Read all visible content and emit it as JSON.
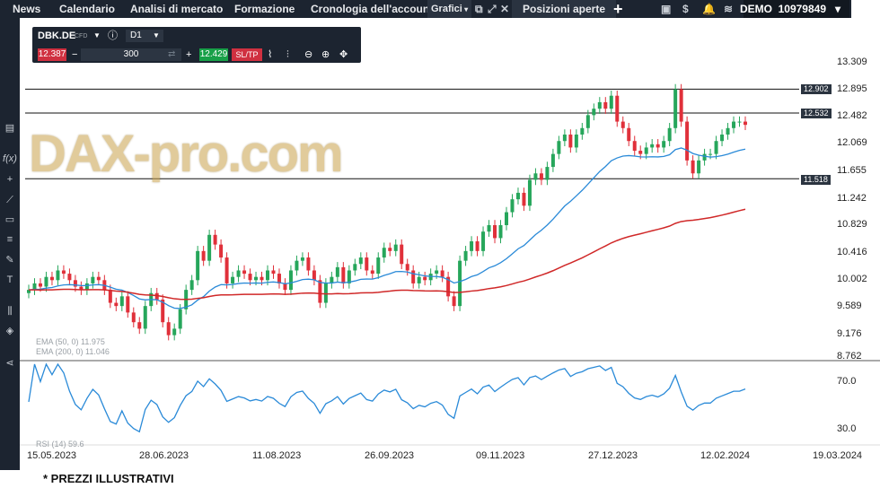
{
  "nav": {
    "news": "News",
    "calendar": "Calendario",
    "market": "Analisi di mercato",
    "training": "Formazione",
    "history": "Cronologia dell'account",
    "charts": "Grafici",
    "positions": "Posizioni aperte"
  },
  "account": {
    "label": "DEMO",
    "number": "10979849"
  },
  "panel": {
    "symbol": "DBK.DE",
    "tag": "CFD",
    "timeframe": "D1",
    "sell": "12.387",
    "buy": "12.429",
    "quantity": "300",
    "minus": "−",
    "plus": "+",
    "sltp": "SL/TP"
  },
  "watermark": "DAX-pro.com",
  "levels": [
    "12.902",
    "12.532",
    "11.518"
  ],
  "y_axis": [
    "13.309",
    "12.895",
    "12.482",
    "12.069",
    "11.655",
    "11.242",
    "10.829",
    "10.416",
    "10.002",
    "9.589",
    "9.176",
    "8.762"
  ],
  "rsi_axis": [
    "70.0",
    "30.0"
  ],
  "x_axis": [
    "15.05.2023",
    "28.06.2023",
    "11.08.2023",
    "26.09.2023",
    "09.11.2023",
    "27.12.2023",
    "12.02.2024",
    "19.03.2024"
  ],
  "indicators": {
    "ema50": "EMA (50, 0) 11.975",
    "ema200": "EMA (200, 0) 11.046",
    "rsi": "RSI (14) 59.6"
  },
  "footer": "* PREZZI ILLUSTRATIVI",
  "colors": {
    "up": "#26a65b",
    "down": "#e0303a",
    "ema50": "#2a8ad8",
    "ema200": "#d02828",
    "rsi": "#2a8ad8",
    "dark": "#1c2430"
  },
  "chart_data": {
    "type": "candlestick",
    "symbol": "DBK.DE",
    "timeframe": "D1",
    "ylim": [
      8.762,
      13.309
    ],
    "horizontal_levels": [
      12.902,
      12.532,
      11.518
    ],
    "close": [
      9.8,
      9.9,
      9.85,
      10.0,
      9.95,
      10.1,
      10.05,
      9.95,
      9.85,
      9.8,
      9.9,
      10.0,
      9.95,
      9.8,
      9.6,
      9.55,
      9.7,
      9.45,
      9.3,
      9.2,
      9.55,
      9.75,
      9.65,
      9.3,
      9.1,
      9.2,
      9.5,
      9.8,
      9.95,
      10.4,
      10.25,
      10.65,
      10.5,
      10.3,
      9.9,
      10.0,
      10.1,
      10.05,
      9.95,
      10.0,
      9.95,
      10.1,
      10.05,
      9.9,
      9.8,
      10.1,
      10.25,
      10.3,
      10.1,
      9.95,
      9.6,
      9.9,
      10.0,
      10.15,
      9.9,
      10.1,
      10.2,
      10.3,
      10.1,
      10.05,
      10.3,
      10.45,
      10.4,
      10.5,
      10.2,
      10.1,
      9.9,
      10.0,
      9.95,
      10.05,
      10.1,
      10.0,
      9.7,
      9.55,
      10.25,
      10.4,
      10.55,
      10.4,
      10.7,
      10.8,
      10.6,
      10.8,
      11.0,
      11.2,
      11.3,
      11.1,
      11.5,
      11.6,
      11.5,
      11.7,
      11.9,
      12.1,
      12.2,
      12.0,
      12.2,
      12.3,
      12.5,
      12.6,
      12.7,
      12.6,
      12.8,
      12.4,
      12.3,
      12.1,
      11.95,
      11.9,
      12.0,
      12.05,
      12.0,
      12.1,
      12.3,
      12.9,
      12.4,
      11.8,
      11.6,
      11.8,
      11.9,
      11.9,
      12.1,
      12.2,
      12.3,
      12.4,
      12.4,
      12.35
    ],
    "ema50_end": 11.975,
    "ema200_end": 11.046,
    "rsi_end": 59.6
  }
}
